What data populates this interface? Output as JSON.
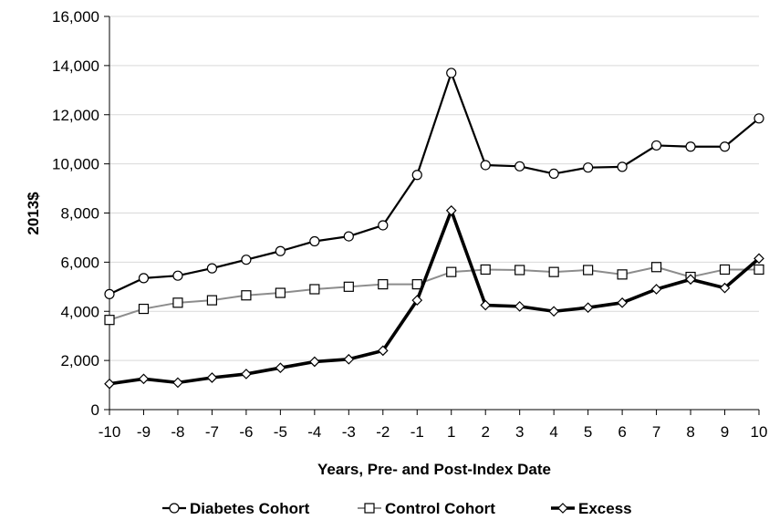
{
  "chart_data": {
    "type": "line",
    "xlabel": "Years, Pre- and Post-Index Date",
    "ylabel": "2013$",
    "x": [
      -10,
      -9,
      -8,
      -7,
      -6,
      -5,
      -4,
      -3,
      -2,
      -1,
      1,
      2,
      3,
      4,
      5,
      6,
      7,
      8,
      9,
      10
    ],
    "x_tick_labels": [
      "-10",
      "-9",
      "-8",
      "-7",
      "-6",
      "-5",
      "-4",
      "-3",
      "-2",
      "-1",
      "1",
      "2",
      "3",
      "4",
      "5",
      "6",
      "7",
      "8",
      "9",
      "10"
    ],
    "ylim": [
      0,
      16000
    ],
    "y_ticks": [
      0,
      2000,
      4000,
      6000,
      8000,
      10000,
      12000,
      14000,
      16000
    ],
    "y_tick_labels": [
      "0",
      "2,000",
      "4,000",
      "6,000",
      "8,000",
      "10,000",
      "12,000",
      "14,000",
      "16,000"
    ],
    "grid": "horizontal",
    "legend_position": "bottom",
    "series": [
      {
        "name": "Diabetes Cohort",
        "marker": "circle",
        "color": "#000000",
        "values": [
          4700,
          5350,
          5450,
          5750,
          6100,
          6450,
          6850,
          7050,
          7500,
          9550,
          13700,
          9950,
          9900,
          9600,
          9850,
          9880,
          10750,
          10700,
          10700,
          11850
        ]
      },
      {
        "name": "Control Cohort",
        "marker": "square",
        "color": "#8c8c8c",
        "values": [
          3650,
          4100,
          4350,
          4450,
          4650,
          4750,
          4900,
          5000,
          5100,
          5100,
          5600,
          5700,
          5680,
          5600,
          5680,
          5500,
          5800,
          5400,
          5700,
          5700
        ]
      },
      {
        "name": "Excess",
        "marker": "diamond",
        "color": "#000000",
        "values": [
          1050,
          1250,
          1100,
          1300,
          1450,
          1700,
          1950,
          2050,
          2400,
          4450,
          8100,
          4250,
          4200,
          4000,
          4150,
          4350,
          4900,
          5300,
          4950,
          6150
        ]
      }
    ]
  }
}
